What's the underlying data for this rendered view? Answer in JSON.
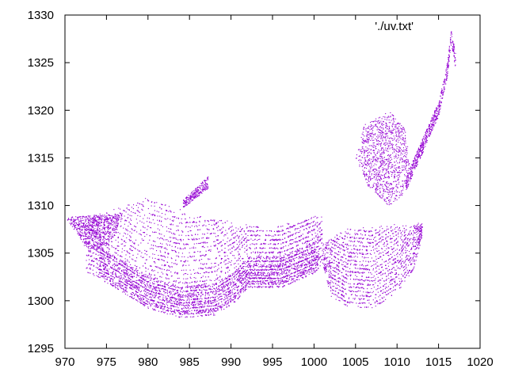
{
  "chart_data": {
    "type": "scatter",
    "title": "",
    "xlabel": "",
    "ylabel": "",
    "xlim": [
      970,
      1020
    ],
    "ylim": [
      1295,
      1330
    ],
    "x_ticks": [
      "970",
      "975",
      "980",
      "985",
      "990",
      "995",
      "1000",
      "1005",
      "1010",
      "1015",
      "1020"
    ],
    "y_ticks": [
      "1295",
      "1300",
      "1305",
      "1310",
      "1315",
      "1320",
      "1325",
      "1330"
    ],
    "grid": false,
    "legend_position": "top-right",
    "series": [
      {
        "name": "'./uv.txt'",
        "color": "#9400d3",
        "marker": "dot",
        "regions": [
          {
            "kind": "main-body-lower-hull",
            "points": [
              [
                973,
                1303
              ],
              [
                976,
                1301.5
              ],
              [
                980,
                1299.3
              ],
              [
                984,
                1298.3
              ],
              [
                988,
                1298.6
              ],
              [
                990.5,
                1300
              ],
              [
                992,
                1301.5
              ],
              [
                996,
                1301.5
              ],
              [
                1000,
                1303
              ],
              [
                1001,
                1304
              ]
            ]
          },
          {
            "kind": "main-body-upper-hull",
            "points": [
              [
                970,
                1308.5
              ],
              [
                975,
                1309.2
              ],
              [
                980,
                1310.8
              ],
              [
                985,
                1309
              ],
              [
                990,
                1308.3
              ],
              [
                995,
                1307.5
              ],
              [
                1000,
                1309
              ],
              [
                1005,
                1308
              ]
            ]
          },
          {
            "kind": "left-lobe",
            "points": [
              [
                970,
                1308.8
              ],
              [
                971.5,
                1307
              ],
              [
                972.5,
                1305.5
              ],
              [
                974.5,
                1305.3
              ],
              [
                976,
                1307
              ],
              [
                977,
                1309.2
              ]
            ]
          },
          {
            "kind": "small-fragment",
            "points": [
              [
                984.5,
                1310
              ],
              [
                985.5,
                1311
              ],
              [
                986.5,
                1312.5
              ],
              [
                987,
                1313
              ]
            ]
          },
          {
            "kind": "right-bowl-lower",
            "points": [
              [
                1001,
                1304
              ],
              [
                1002,
                1300.5
              ],
              [
                1004,
                1299.5
              ],
              [
                1007,
                1299.3
              ],
              [
                1010,
                1301
              ],
              [
                1012,
                1303.5
              ],
              [
                1013,
                1307
              ]
            ]
          },
          {
            "kind": "right-bowl-upper",
            "points": [
              [
                1001,
                1306
              ],
              [
                1004,
                1307.5
              ],
              [
                1008,
                1307.8
              ],
              [
                1013,
                1308
              ]
            ]
          },
          {
            "kind": "upper-oval",
            "points": [
              [
                1009,
                1320
              ],
              [
                1011,
                1318
              ],
              [
                1011.5,
                1314
              ],
              [
                1010.5,
                1311
              ],
              [
                1009,
                1310
              ],
              [
                1006.5,
                1312
              ],
              [
                1005,
                1315
              ],
              [
                1006,
                1318.5
              ]
            ]
          },
          {
            "kind": "tail",
            "points": [
              [
                1011,
                1313
              ],
              [
                1013,
                1317
              ],
              [
                1015,
                1321
              ],
              [
                1016,
                1325
              ],
              [
                1016.5,
                1328.5
              ],
              [
                1017,
                1326
              ]
            ]
          }
        ]
      }
    ]
  }
}
